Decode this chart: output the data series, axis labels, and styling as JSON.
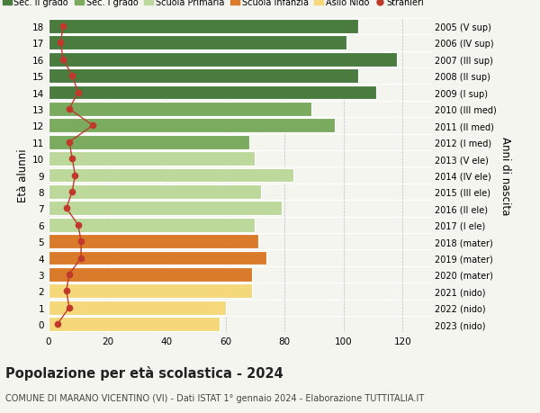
{
  "ages": [
    18,
    17,
    16,
    15,
    14,
    13,
    12,
    11,
    10,
    9,
    8,
    7,
    6,
    5,
    4,
    3,
    2,
    1,
    0
  ],
  "right_labels": [
    "2005 (V sup)",
    "2006 (IV sup)",
    "2007 (III sup)",
    "2008 (II sup)",
    "2009 (I sup)",
    "2010 (III med)",
    "2011 (II med)",
    "2012 (I med)",
    "2013 (V ele)",
    "2014 (IV ele)",
    "2015 (III ele)",
    "2016 (II ele)",
    "2017 (I ele)",
    "2018 (mater)",
    "2019 (mater)",
    "2020 (mater)",
    "2021 (nido)",
    "2022 (nido)",
    "2023 (nido)"
  ],
  "bar_values": [
    105,
    101,
    118,
    105,
    111,
    89,
    97,
    68,
    70,
    83,
    72,
    79,
    70,
    71,
    74,
    69,
    69,
    60,
    58
  ],
  "stranieri_values": [
    5,
    4,
    5,
    8,
    10,
    7,
    15,
    7,
    8,
    9,
    8,
    6,
    10,
    11,
    11,
    7,
    6,
    7,
    3
  ],
  "bar_colors": [
    "#4a7c3f",
    "#4a7c3f",
    "#4a7c3f",
    "#4a7c3f",
    "#4a7c3f",
    "#7aab5e",
    "#7aab5e",
    "#7aab5e",
    "#bcd89a",
    "#bcd89a",
    "#bcd89a",
    "#bcd89a",
    "#bcd89a",
    "#d97b2b",
    "#d97b2b",
    "#d97b2b",
    "#f5d87a",
    "#f5d87a",
    "#f5d87a"
  ],
  "title": "Popolazione per età scolastica - 2024",
  "subtitle": "COMUNE DI MARANO VICENTINO (VI) - Dati ISTAT 1° gennaio 2024 - Elaborazione TUTTITALIA.IT",
  "ylabel_label": "Età alunni",
  "right_axis_label": "Anni di nascita",
  "legend_labels": [
    "Sec. II grado",
    "Sec. I grado",
    "Scuola Primaria",
    "Scuola Infanzia",
    "Asilo Nido",
    "Stranieri"
  ],
  "legend_colors": [
    "#4a7c3f",
    "#7aab5e",
    "#bcd89a",
    "#d97b2b",
    "#f5d87a",
    "#c0392b"
  ],
  "stranieri_color": "#c0392b",
  "background_color": "#f5f5f0",
  "bar_height": 0.85,
  "xlim": [
    0,
    130
  ],
  "xticks": [
    0,
    20,
    40,
    60,
    80,
    100,
    120
  ]
}
